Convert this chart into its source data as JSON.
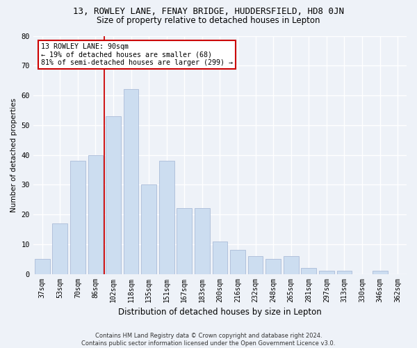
{
  "title1": "13, ROWLEY LANE, FENAY BRIDGE, HUDDERSFIELD, HD8 0JN",
  "title2": "Size of property relative to detached houses in Lepton",
  "xlabel": "Distribution of detached houses by size in Lepton",
  "ylabel": "Number of detached properties",
  "footer": "Contains HM Land Registry data © Crown copyright and database right 2024.\nContains public sector information licensed under the Open Government Licence v3.0.",
  "categories": [
    "37sqm",
    "53sqm",
    "70sqm",
    "86sqm",
    "102sqm",
    "118sqm",
    "135sqm",
    "151sqm",
    "167sqm",
    "183sqm",
    "200sqm",
    "216sqm",
    "232sqm",
    "248sqm",
    "265sqm",
    "281sqm",
    "297sqm",
    "313sqm",
    "330sqm",
    "346sqm",
    "362sqm"
  ],
  "values": [
    5,
    17,
    38,
    40,
    53,
    62,
    30,
    38,
    22,
    22,
    11,
    8,
    6,
    5,
    6,
    2,
    1,
    1,
    0,
    1,
    0
  ],
  "bar_color": "#ccddf0",
  "bar_edge_color": "#aabbd8",
  "bg_color": "#eef2f8",
  "grid_color": "#ffffff",
  "vline_color": "#cc0000",
  "annotation_text": "13 ROWLEY LANE: 90sqm\n← 19% of detached houses are smaller (68)\n81% of semi-detached houses are larger (299) →",
  "annotation_box_color": "#ffffff",
  "annotation_box_edge": "#cc0000",
  "ylim": [
    0,
    80
  ],
  "yticks": [
    0,
    10,
    20,
    30,
    40,
    50,
    60,
    70,
    80
  ],
  "title1_fontsize": 9,
  "title2_fontsize": 8.5,
  "xlabel_fontsize": 8.5,
  "ylabel_fontsize": 7.5,
  "tick_fontsize": 7,
  "footer_fontsize": 6
}
